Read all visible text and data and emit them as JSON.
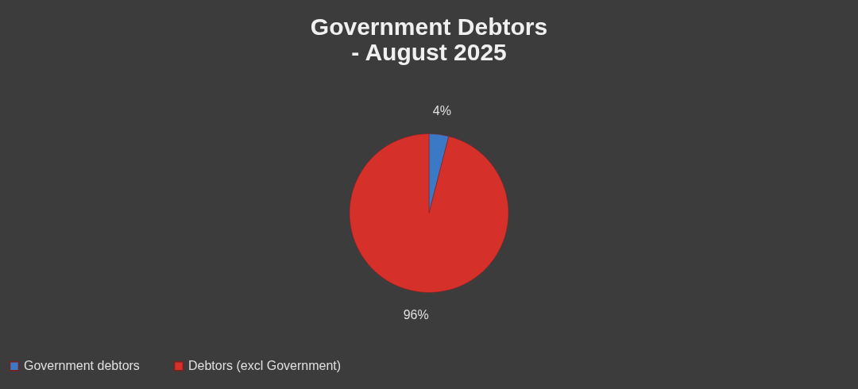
{
  "chart_data": {
    "type": "pie",
    "title": [
      "Government Debtors",
      "- August 2025"
    ],
    "categories": [
      "Government debtors",
      "Debtors (excl Government)"
    ],
    "values": [
      4,
      96
    ],
    "colors": [
      "#3b78c6",
      "#d6302b"
    ],
    "value_labels": [
      "4%",
      "96%"
    ],
    "legend": "bottom"
  }
}
